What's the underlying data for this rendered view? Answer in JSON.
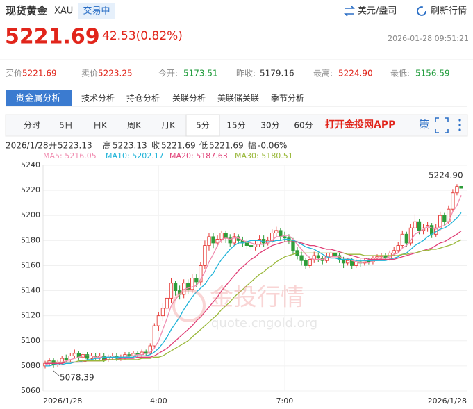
{
  "header": {
    "title": "现货黄金",
    "symbol": "XAU",
    "status": "交易中",
    "unit": "美元/盎司",
    "refresh": "刷新行情"
  },
  "quote": {
    "price": "5221.69",
    "change": "42.53(0.82%)",
    "time": "2026-01-28 09:51:21",
    "items": [
      {
        "label": "买价:",
        "value": "5221.69"
      },
      {
        "label": "卖价:",
        "value": "5223.25"
      },
      {
        "label": "今开:",
        "value": "5173.51"
      },
      {
        "label": "昨收:",
        "value": "5179.16"
      },
      {
        "label": "最高:",
        "value": "5224.90"
      },
      {
        "label": "最低:",
        "value": "5156.59"
      }
    ]
  },
  "tabs": [
    "贵金属分析",
    "技术分析",
    "持仓分析",
    "关联分析",
    "美联储关联",
    "季节分析"
  ],
  "periods": [
    "分时",
    "5日",
    "日K",
    "周K",
    "月K",
    "5分",
    "15分",
    "30分",
    "60分"
  ],
  "app_link": "打开金投网APP",
  "strategy": "策",
  "info": {
    "date": "2026/1/28",
    "items": [
      {
        "label": "开",
        "value": "5223.13"
      },
      {
        "label": "高",
        "value": "5223.13"
      },
      {
        "label": "收",
        "value": "5221.69"
      },
      {
        "label": "低",
        "value": "5221.69"
      },
      {
        "label": "幅",
        "value": "-0.06%"
      }
    ]
  },
  "watermark": {
    "title": "金投行情",
    "url": "quote.cngold.org"
  },
  "chart_data": {
    "type": "candlestick",
    "up_color": "#e53935",
    "down_color": "#2e9d3a",
    "grid": true,
    "ylim": [
      5060,
      5240
    ],
    "yticks": [
      5060,
      5080,
      5100,
      5120,
      5140,
      5160,
      5180,
      5200,
      5220,
      5240
    ],
    "categories": [
      "2026/1/28",
      null,
      null,
      null,
      null,
      null,
      null,
      null,
      null,
      null,
      null,
      null,
      null,
      null,
      null,
      null,
      null,
      null,
      null,
      null,
      null,
      null,
      null,
      null,
      null,
      null,
      null,
      "4:00",
      null,
      null,
      null,
      null,
      null,
      null,
      null,
      null,
      null,
      null,
      null,
      null,
      null,
      null,
      null,
      null,
      null,
      null,
      null,
      null,
      null,
      null,
      null,
      null,
      null,
      null,
      null,
      null,
      null,
      "7:00",
      null,
      null,
      null,
      null,
      null,
      null,
      null,
      null,
      null,
      null,
      null,
      null,
      null,
      null,
      null,
      null,
      null,
      null,
      null,
      null,
      null,
      null,
      null,
      null,
      null,
      null,
      null,
      null,
      null,
      null,
      null,
      null,
      null,
      null,
      null,
      null,
      null,
      null,
      null,
      null,
      null,
      "2026/1/28"
    ],
    "open": [
      5080,
      5082,
      5084,
      5081,
      5083,
      5086,
      5085,
      5088,
      5090,
      5087,
      5089,
      5086,
      5088,
      5087,
      5088,
      5085,
      5087,
      5088,
      5086,
      5087,
      5089,
      5088,
      5090,
      5089,
      5091,
      5090,
      5096,
      5112,
      5120,
      5126,
      5134,
      5146,
      5140,
      5137,
      5146,
      5141,
      5150,
      5147,
      5160,
      5176,
      5183,
      5178,
      5181,
      5186,
      5182,
      5178,
      5183,
      5180,
      5178,
      5176,
      5175,
      5177,
      5181,
      5178,
      5180,
      5186,
      5188,
      5183,
      5182,
      5180,
      5172,
      5168,
      5164,
      5160,
      5165,
      5168,
      5166,
      5164,
      5167,
      5170,
      5168,
      5165,
      5162,
      5164,
      5160,
      5163,
      5162,
      5164,
      5163,
      5166,
      5167,
      5168,
      5166,
      5170,
      5172,
      5176,
      5185,
      5178,
      5190,
      5195,
      5188,
      5190,
      5192,
      5185,
      5190,
      5200,
      5195,
      5205,
      5218,
      5223.13
    ],
    "high": [
      5084,
      5086,
      5086,
      5085,
      5088,
      5089,
      5090,
      5093,
      5092,
      5091,
      5091,
      5090,
      5090,
      5090,
      5090,
      5089,
      5090,
      5090,
      5089,
      5091,
      5091,
      5092,
      5092,
      5093,
      5093,
      5098,
      5114,
      5123,
      5130,
      5138,
      5150,
      5148,
      5144,
      5149,
      5149,
      5153,
      5153,
      5163,
      5180,
      5186,
      5186,
      5184,
      5188,
      5188,
      5185,
      5186,
      5185,
      5183,
      5181,
      5179,
      5180,
      5184,
      5184,
      5183,
      5189,
      5191,
      5190,
      5187,
      5185,
      5182,
      5175,
      5171,
      5166,
      5168,
      5171,
      5170,
      5168,
      5170,
      5173,
      5172,
      5170,
      5167,
      5166,
      5166,
      5165,
      5165,
      5166,
      5166,
      5168,
      5169,
      5170,
      5170,
      5172,
      5175,
      5179,
      5188,
      5187,
      5193,
      5201,
      5197,
      5193,
      5195,
      5194,
      5193,
      5203,
      5202,
      5208,
      5221,
      5224.9,
      5223.13
    ],
    "low": [
      5078,
      5080,
      5078.39,
      5079,
      5081,
      5083,
      5083,
      5086,
      5085,
      5085,
      5084,
      5084,
      5085,
      5085,
      5083,
      5083,
      5085,
      5084,
      5084,
      5085,
      5086,
      5086,
      5087,
      5087,
      5088,
      5089,
      5094,
      5108,
      5116,
      5122,
      5130,
      5136,
      5133,
      5134,
      5137,
      5138,
      5143,
      5144,
      5157,
      5172,
      5174,
      5175,
      5178,
      5178,
      5175,
      5176,
      5177,
      5175,
      5173,
      5172,
      5172,
      5175,
      5175,
      5176,
      5178,
      5183,
      5180,
      5179,
      5177,
      5169,
      5165,
      5160,
      5157,
      5158,
      5162,
      5163,
      5161,
      5162,
      5165,
      5165,
      5162,
      5158,
      5160,
      5157,
      5158,
      5159,
      5160,
      5161,
      5161,
      5164,
      5165,
      5164,
      5164,
      5168,
      5170,
      5174,
      5175,
      5176,
      5187,
      5185,
      5185,
      5187,
      5182,
      5183,
      5188,
      5192,
      5193,
      5203,
      5216,
      5221.69
    ],
    "close": [
      5082,
      5084,
      5081,
      5083,
      5086,
      5085,
      5088,
      5090,
      5087,
      5089,
      5086,
      5088,
      5087,
      5088,
      5085,
      5087,
      5088,
      5086,
      5087,
      5089,
      5088,
      5090,
      5089,
      5091,
      5090,
      5096,
      5112,
      5120,
      5126,
      5134,
      5146,
      5140,
      5137,
      5146,
      5141,
      5150,
      5147,
      5160,
      5176,
      5183,
      5178,
      5181,
      5186,
      5182,
      5178,
      5183,
      5180,
      5178,
      5176,
      5175,
      5177,
      5181,
      5178,
      5180,
      5186,
      5188,
      5183,
      5182,
      5180,
      5172,
      5168,
      5164,
      5160,
      5165,
      5168,
      5166,
      5164,
      5167,
      5170,
      5168,
      5165,
      5162,
      5164,
      5160,
      5163,
      5162,
      5164,
      5163,
      5166,
      5167,
      5168,
      5166,
      5170,
      5172,
      5176,
      5185,
      5178,
      5190,
      5195,
      5188,
      5190,
      5192,
      5185,
      5190,
      5200,
      5195,
      5205,
      5218,
      5223,
      5221.69
    ],
    "series": [
      {
        "name": "MA5",
        "label": "MA5: 5216.05",
        "color": "#f08cb0",
        "values": [
          5081,
          5082,
          5082,
          5082,
          5083,
          5084,
          5085,
          5086,
          5087,
          5088,
          5088,
          5088,
          5087,
          5087,
          5087,
          5087,
          5087,
          5087,
          5087,
          5087,
          5088,
          5088,
          5089,
          5089,
          5090,
          5091,
          5094,
          5100,
          5109,
          5118,
          5128,
          5133,
          5137,
          5141,
          5142,
          5143,
          5144,
          5149,
          5155,
          5163,
          5169,
          5176,
          5181,
          5182,
          5181,
          5182,
          5182,
          5180,
          5179,
          5178,
          5177,
          5177,
          5177,
          5178,
          5180,
          5183,
          5183,
          5184,
          5184,
          5181,
          5177,
          5173,
          5169,
          5166,
          5165,
          5165,
          5165,
          5166,
          5167,
          5167,
          5167,
          5166,
          5166,
          5164,
          5163,
          5162,
          5163,
          5162,
          5164,
          5164,
          5166,
          5166,
          5167,
          5169,
          5170,
          5174,
          5176,
          5180,
          5185,
          5187,
          5189,
          5191,
          5190,
          5189,
          5191,
          5192,
          5195,
          5203,
          5208,
          5216.05
        ]
      },
      {
        "name": "MA10",
        "label": "MA10: 5202.17",
        "color": "#1fb3d8",
        "values": [
          5080,
          5080,
          5081,
          5081,
          5081,
          5082,
          5082,
          5083,
          5083,
          5084,
          5085,
          5085,
          5086,
          5086,
          5087,
          5087,
          5087,
          5087,
          5087,
          5087,
          5087,
          5087,
          5088,
          5088,
          5088,
          5089,
          5091,
          5094,
          5098,
          5103,
          5109,
          5114,
          5119,
          5125,
          5130,
          5135,
          5139,
          5142,
          5145,
          5150,
          5154,
          5160,
          5165,
          5169,
          5173,
          5176,
          5178,
          5178,
          5179,
          5180,
          5180,
          5180,
          5179,
          5179,
          5179,
          5180,
          5180,
          5181,
          5181,
          5180,
          5179,
          5177,
          5175,
          5174,
          5173,
          5171,
          5169,
          5167,
          5166,
          5166,
          5165,
          5165,
          5165,
          5165,
          5164,
          5164,
          5164,
          5164,
          5164,
          5164,
          5164,
          5164,
          5165,
          5166,
          5167,
          5169,
          5170,
          5173,
          5176,
          5178,
          5180,
          5183,
          5185,
          5187,
          5189,
          5190,
          5192,
          5195,
          5198,
          5202.17
        ]
      },
      {
        "name": "MA20",
        "label": "MA20: 5187.63",
        "color": "#e03f76",
        "values": [
          5082,
          5082,
          5082,
          5082,
          5082,
          5083,
          5083,
          5083,
          5083,
          5083,
          5084,
          5084,
          5084,
          5084,
          5085,
          5085,
          5085,
          5085,
          5086,
          5086,
          5086,
          5086,
          5087,
          5087,
          5087,
          5087,
          5088,
          5090,
          5092,
          5094,
          5097,
          5100,
          5103,
          5106,
          5109,
          5112,
          5116,
          5119,
          5123,
          5127,
          5131,
          5135,
          5140,
          5144,
          5148,
          5152,
          5156,
          5159,
          5162,
          5165,
          5167,
          5170,
          5172,
          5174,
          5176,
          5177,
          5178,
          5179,
          5179,
          5179,
          5179,
          5178,
          5177,
          5176,
          5176,
          5175,
          5174,
          5173,
          5173,
          5172,
          5171,
          5170,
          5169,
          5168,
          5167,
          5166,
          5166,
          5165,
          5165,
          5165,
          5165,
          5165,
          5165,
          5165,
          5166,
          5167,
          5168,
          5169,
          5170,
          5171,
          5172,
          5173,
          5174,
          5176,
          5178,
          5179,
          5181,
          5183,
          5185,
          5187.63
        ]
      },
      {
        "name": "MA30",
        "label": "MA30: 5180.51",
        "color": "#9ab83a",
        "values": [
          5083,
          5083,
          5083,
          5083,
          5083,
          5083,
          5083,
          5083,
          5084,
          5084,
          5084,
          5084,
          5084,
          5084,
          5084,
          5085,
          5085,
          5085,
          5085,
          5085,
          5085,
          5085,
          5085,
          5086,
          5086,
          5086,
          5087,
          5087,
          5088,
          5090,
          5092,
          5094,
          5096,
          5098,
          5100,
          5103,
          5106,
          5109,
          5112,
          5115,
          5118,
          5121,
          5125,
          5128,
          5131,
          5135,
          5138,
          5141,
          5144,
          5147,
          5150,
          5153,
          5155,
          5158,
          5160,
          5163,
          5165,
          5167,
          5168,
          5169,
          5170,
          5170,
          5170,
          5170,
          5170,
          5170,
          5170,
          5170,
          5170,
          5170,
          5170,
          5170,
          5169,
          5169,
          5169,
          5169,
          5168,
          5168,
          5168,
          5168,
          5168,
          5168,
          5168,
          5168,
          5168,
          5169,
          5169,
          5170,
          5170,
          5171,
          5172,
          5172,
          5173,
          5173,
          5174,
          5175,
          5176,
          5177,
          5179,
          5180.51
        ]
      }
    ],
    "annotations": [
      {
        "text": "5224.90"
      },
      {
        "text": "5078.39"
      }
    ]
  }
}
